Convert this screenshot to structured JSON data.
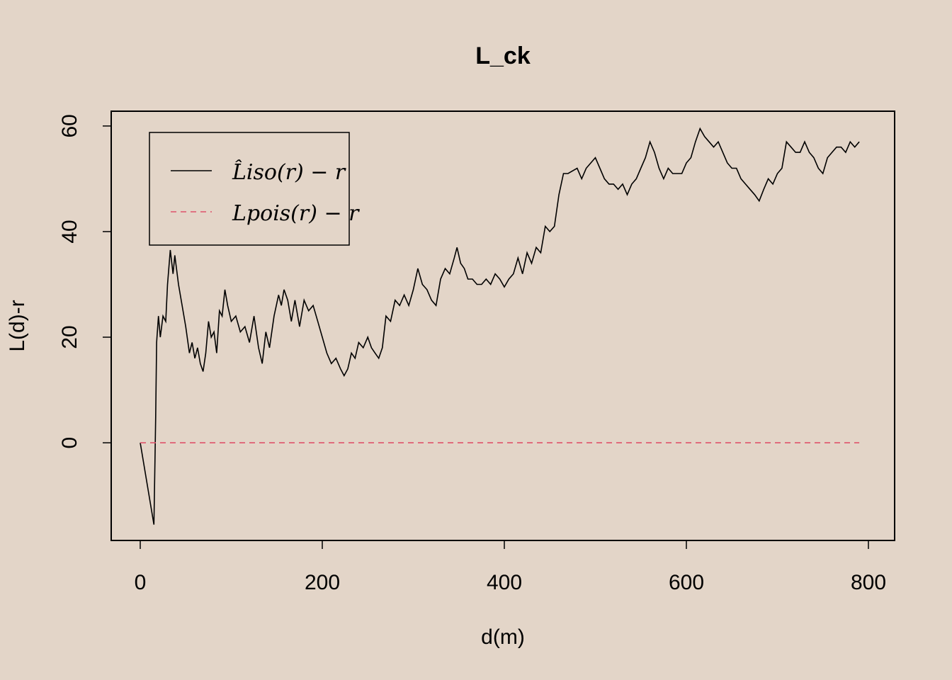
{
  "chart_data": {
    "type": "line",
    "title": "L_ck",
    "x_label": "d(m)",
    "y_label": "L(d)-r",
    "xlim": [
      -31.9,
      828.8
    ],
    "ylim": [
      -18.5,
      62.8
    ],
    "xticks": [
      0,
      200,
      400,
      600,
      800
    ],
    "yticks": [
      0,
      20,
      40,
      60
    ],
    "grid": false,
    "legend": "top-left",
    "series": [
      {
        "name": "L̂iso(r) − r",
        "color": "#000000",
        "dash": false,
        "x": [
          0,
          15,
          17,
          18,
          20,
          22,
          25,
          28,
          30,
          33,
          36,
          38,
          42,
          46,
          50,
          54,
          57,
          60,
          63,
          66,
          69,
          72,
          75,
          78,
          81,
          84,
          87,
          90,
          93,
          96,
          100,
          105,
          110,
          115,
          120,
          125,
          130,
          134,
          138,
          142,
          147,
          152,
          155,
          158,
          162,
          166,
          170,
          175,
          180,
          185,
          190,
          195,
          200,
          205,
          210,
          215,
          220,
          224,
          228,
          232,
          236,
          240,
          245,
          250,
          254,
          258,
          262,
          266,
          270,
          275,
          280,
          285,
          290,
          295,
          300,
          305,
          310,
          315,
          320,
          325,
          330,
          335,
          340,
          345,
          348,
          352,
          356,
          360,
          365,
          370,
          375,
          380,
          385,
          390,
          395,
          400,
          405,
          410,
          415,
          420,
          425,
          430,
          435,
          440,
          445,
          450,
          455,
          460,
          465,
          470,
          475,
          480,
          485,
          490,
          495,
          500,
          505,
          510,
          515,
          520,
          525,
          530,
          535,
          540,
          545,
          550,
          555,
          560,
          565,
          570,
          575,
          580,
          585,
          590,
          595,
          600,
          605,
          610,
          615,
          620,
          625,
          630,
          635,
          640,
          645,
          650,
          655,
          660,
          665,
          670,
          675,
          680,
          685,
          690,
          695,
          700,
          705,
          710,
          715,
          720,
          725,
          730,
          735,
          740,
          745,
          750,
          755,
          760,
          765,
          770,
          775,
          780,
          785,
          790
        ],
        "values": [
          0,
          -15.5,
          5,
          19,
          24,
          20,
          24,
          23,
          30,
          36.5,
          32,
          35.5,
          30,
          26,
          22,
          17,
          19,
          16,
          18,
          15,
          13.5,
          17,
          23,
          20,
          21,
          17,
          25,
          24,
          29,
          26,
          23,
          24,
          21,
          22,
          19,
          24,
          18,
          15,
          21,
          18,
          24,
          28,
          26,
          29,
          27,
          23,
          27,
          22,
          27,
          25,
          26,
          23,
          20,
          17,
          15,
          16,
          14,
          12.7,
          14,
          17,
          16,
          19,
          18,
          20,
          18,
          17,
          16,
          18,
          24,
          23,
          27,
          26,
          28,
          26,
          29,
          33,
          30,
          29,
          27,
          26,
          31,
          33,
          32,
          35,
          37,
          34,
          33,
          31,
          31,
          30,
          30,
          31,
          30,
          32,
          31,
          29.5,
          31,
          32,
          35,
          32,
          36,
          34,
          37,
          36,
          41,
          40,
          41,
          47,
          51,
          51,
          51.5,
          52,
          50,
          52,
          53,
          54,
          52,
          50,
          49,
          49,
          48,
          49,
          47,
          49,
          50,
          52,
          54,
          57,
          55,
          52,
          50,
          52,
          51,
          51,
          51,
          53,
          54,
          57,
          59.5,
          58,
          57,
          56,
          57,
          55,
          53,
          52,
          52,
          50,
          49,
          48,
          47,
          45.8,
          48,
          50,
          49,
          51,
          52,
          57,
          56,
          55,
          55,
          57,
          55,
          54,
          52,
          51,
          54,
          55,
          56,
          56,
          55,
          57,
          56,
          57
        ]
      },
      {
        "name": "Lpois(r) − r",
        "color": "#df536b",
        "dash": true,
        "x": [
          0,
          790
        ],
        "values": [
          0,
          0
        ]
      }
    ]
  }
}
